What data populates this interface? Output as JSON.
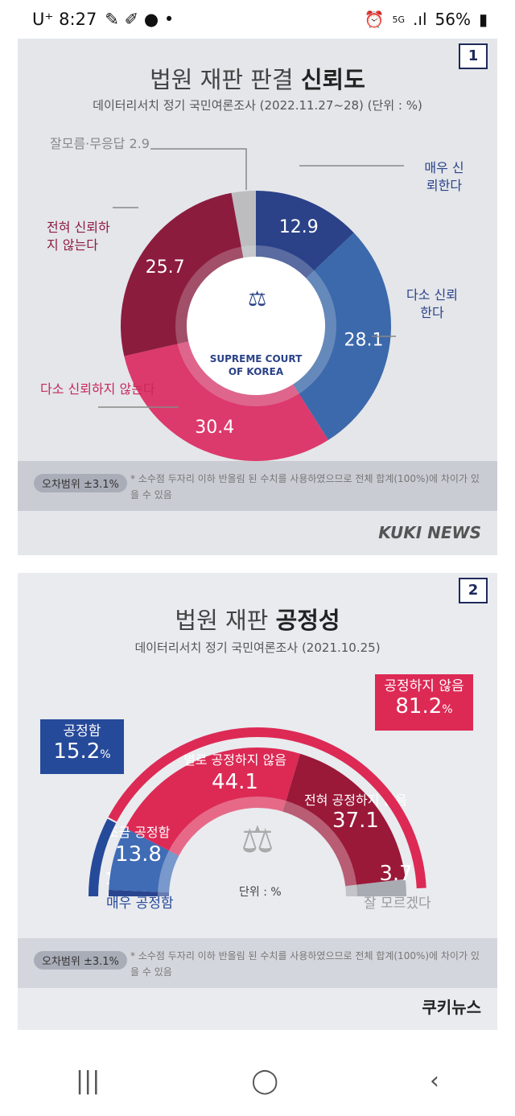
{
  "status_bar": {
    "carrier": "U⁺",
    "time": "8:27",
    "battery": "56%",
    "network": "5G"
  },
  "card1": {
    "badge": "1",
    "title_plain": "법원 재판 판결 ",
    "title_bold": "신뢰도",
    "subtitle": "데이터리서치 정기 국민여론조사 (2022.11.27~28)  (단위 : %)",
    "center_logo": "SUPREME COURT OF KOREA",
    "center_logo_line1": "SUPREME COURT",
    "center_logo_line2": "OF KOREA",
    "error_margin": "오차범위 ±3.1%",
    "note": "* 소수점 두자리 이하 반올림 된 수치를 사용하였으므로 전체 합계(100%)에 차이가 있을 수 있음",
    "brand": "KUKI NEWS"
  },
  "card2": {
    "badge": "2",
    "title_plain": "법원 재판 ",
    "title_bold": "공정성",
    "subtitle": "데이터리서치 정기 국민여론조사 (2021.10.25)",
    "fair_label": "공정함",
    "fair_value": "15.2",
    "unfair_label": "공정하지 않음",
    "unfair_value": "81.2",
    "pct": "%",
    "unit": "단위 : %",
    "error_margin": "오차범위 ±3.1%",
    "note": "* 소수점 두자리 이하 반올림 된 수치를 사용하였으므로 전체 합계(100%)에 차이가 있을 수 있음",
    "brand": "쿠키뉴스"
  },
  "chart_data": [
    {
      "type": "pie",
      "title": "법원 재판 판결 신뢰도",
      "unit": "%",
      "labels": [
        "매우 신뢰한다",
        "다소 신뢰한다",
        "다소 신뢰하지 않는다",
        "전혀 신뢰하지 않는다",
        "잘모름·무응답"
      ],
      "values": [
        12.9,
        28.1,
        30.4,
        25.7,
        2.9
      ],
      "colors": [
        "#2b4288",
        "#3c69ab",
        "#dc3a6c",
        "#8c1c3e",
        "#bdbdc0"
      ]
    },
    {
      "type": "pie",
      "title": "법원 재판 공정성",
      "unit": "%",
      "labels": [
        "매우 공정함",
        "조금 공정함",
        "별로 공정하지 않음",
        "전혀 공정하지 않음",
        "잘 모르겠다"
      ],
      "values": [
        1.4,
        13.8,
        44.1,
        37.1,
        3.7
      ],
      "colors": [
        "#2a4590",
        "#3f6cb5",
        "#dc2a55",
        "#9a1838",
        "#a9abb3"
      ]
    }
  ],
  "nav": {
    "recent": "|||",
    "home": "◯",
    "back": "‹"
  }
}
